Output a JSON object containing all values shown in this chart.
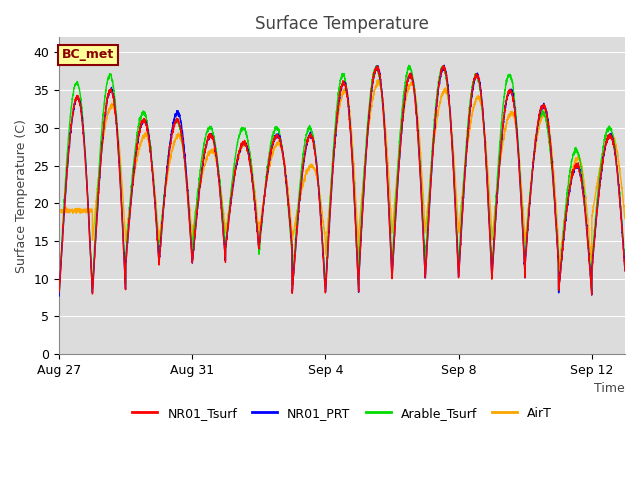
{
  "title": "Surface Temperature",
  "ylabel": "Surface Temperature (C)",
  "xlabel": "Time",
  "annotation_text": "BC_met",
  "annotation_color": "#8B0000",
  "annotation_bg": "#FFFF99",
  "ylim": [
    0,
    42
  ],
  "yticks": [
    0,
    5,
    10,
    15,
    20,
    25,
    30,
    35,
    40
  ],
  "bg_color": "#DCDCDC",
  "fig_bg": "#FFFFFF",
  "grid_color": "#FFFFFF",
  "line_colors": {
    "NR01_Tsurf": "#FF0000",
    "NR01_PRT": "#0000FF",
    "Arable_Tsurf": "#00DD00",
    "AirT": "#FFA500"
  },
  "line_width": 1.0,
  "x_tick_labels": [
    "Aug 27",
    "Aug 31",
    "Sep 4",
    "Sep 8",
    "Sep 12"
  ],
  "x_tick_positions": [
    0,
    4,
    8,
    12,
    16
  ],
  "total_days": 17,
  "n_points": 3400,
  "title_fontsize": 12,
  "label_fontsize": 9,
  "tick_fontsize": 9,
  "legend_fontsize": 9,
  "figsize": [
    6.4,
    4.8
  ],
  "dpi": 100
}
